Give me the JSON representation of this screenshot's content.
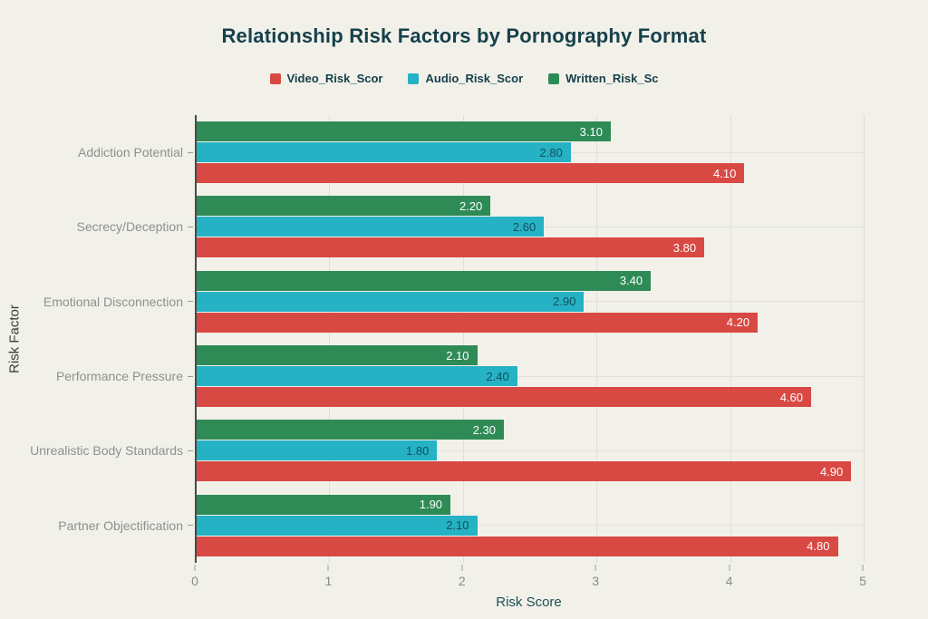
{
  "title": "Relationship Risk Factors by Pornography Format",
  "legend": [
    {
      "label": "Video_Risk_Scor"
    },
    {
      "label": "Audio_Risk_Scor"
    },
    {
      "label": "Written_Risk_Sc"
    }
  ],
  "colors": {
    "background": "#f1f1ea",
    "title_text": "#17404b",
    "video_red": "#d94944",
    "audio_cyan": "#25b2c5",
    "written_green": "#2e8b55",
    "gridline": "#dfdfd7",
    "axis_line": "#4a4a4a",
    "category_label": "#8f8f8f",
    "tick_label": "#8a8a8a",
    "xlabel_text": "#1d5052",
    "ylabel_text": "#3b3b3b"
  },
  "chart_data": {
    "type": "bar",
    "orientation": "horizontal",
    "title": "Relationship Risk Factors by Pornography Format",
    "xlabel": "Risk Score",
    "ylabel": "Risk Factor",
    "xlim": [
      0,
      5
    ],
    "xticks": [
      0,
      1,
      2,
      3,
      4,
      5
    ],
    "grid": true,
    "legend_position": "top",
    "value_labels": true,
    "value_label_format": "2-decimals",
    "categories": [
      "Addiction Potential",
      "Secrecy/Deception",
      "Emotional Disconnection",
      "Performance Pressure",
      "Unrealistic Body Standards",
      "Partner Objectification"
    ],
    "series": [
      {
        "name": "Video_Risk_Scor",
        "color": "#d94944",
        "label_color": "#ffffff",
        "values": [
          4.1,
          3.8,
          4.2,
          4.6,
          4.9,
          4.8
        ]
      },
      {
        "name": "Audio_Risk_Scor",
        "color": "#25b2c5",
        "label_color": "#14505c",
        "values": [
          2.8,
          2.6,
          2.9,
          2.4,
          1.8,
          2.1
        ]
      },
      {
        "name": "Written_Risk_Sc",
        "color": "#2e8b55",
        "label_color": "#ffffff",
        "values": [
          3.1,
          2.2,
          3.4,
          2.1,
          2.3,
          1.9
        ]
      }
    ]
  }
}
